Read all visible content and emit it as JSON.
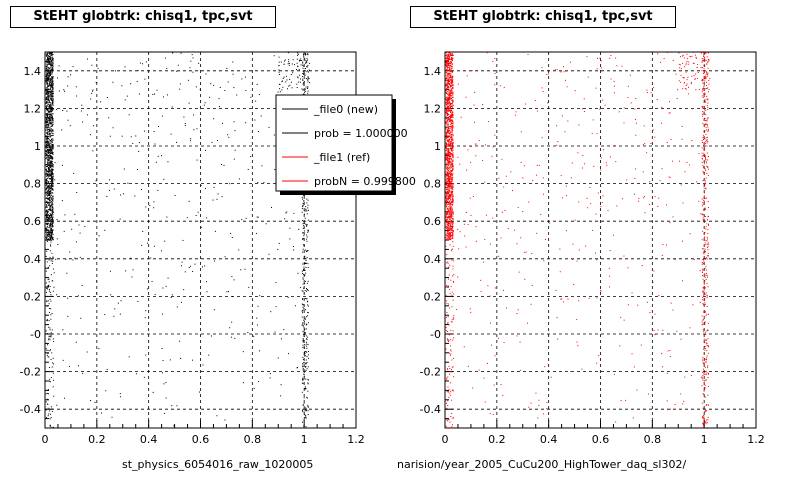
{
  "chart_data": [
    {
      "type": "scatter",
      "title": "StEHT globtrk: chisq1, tpc,svt",
      "xlabel": "st_physics_6054016_raw_1020005",
      "ylabel": "",
      "xlim": [
        0,
        1.2
      ],
      "ylim": [
        -0.5,
        1.5
      ],
      "x_ticks": [
        "0",
        "0.2",
        "0.4",
        "0.6",
        "0.8",
        "1",
        "1.2"
      ],
      "y_ticks": [
        "-0.4",
        "-0.2",
        "-0",
        "0.2",
        "0.4",
        "0.6",
        "0.8",
        "1",
        "1.2",
        "1.4"
      ],
      "grid": true,
      "marker_color": "#000000",
      "legend": {
        "placement": "top-right",
        "entries": [
          {
            "label": "_file0 (new)",
            "color": "#000000"
          },
          {
            "label": "prob = 1.000000",
            "color": "#000000"
          },
          {
            "label": "_file1 (ref)",
            "color": "#ff0000"
          },
          {
            "label": "probN = 0.999800",
            "color": "#ff0000"
          }
        ]
      }
    },
    {
      "type": "scatter",
      "title": "StEHT globtrk: chisq1, tpc,svt",
      "xlabel": "narision/year_2005_CuCu200_HighTower_daq_sl302/",
      "ylabel": "",
      "xlim": [
        0,
        1.2
      ],
      "ylim": [
        -0.5,
        1.5
      ],
      "x_ticks": [
        "0",
        "0.2",
        "0.4",
        "0.6",
        "0.8",
        "1",
        "1.2"
      ],
      "y_ticks": [
        "-0.4",
        "-0.2",
        "-0",
        "0.2",
        "0.4",
        "0.6",
        "0.8",
        "1",
        "1.2",
        "1.4"
      ],
      "grid": true,
      "marker_color": "#ff0000"
    }
  ]
}
